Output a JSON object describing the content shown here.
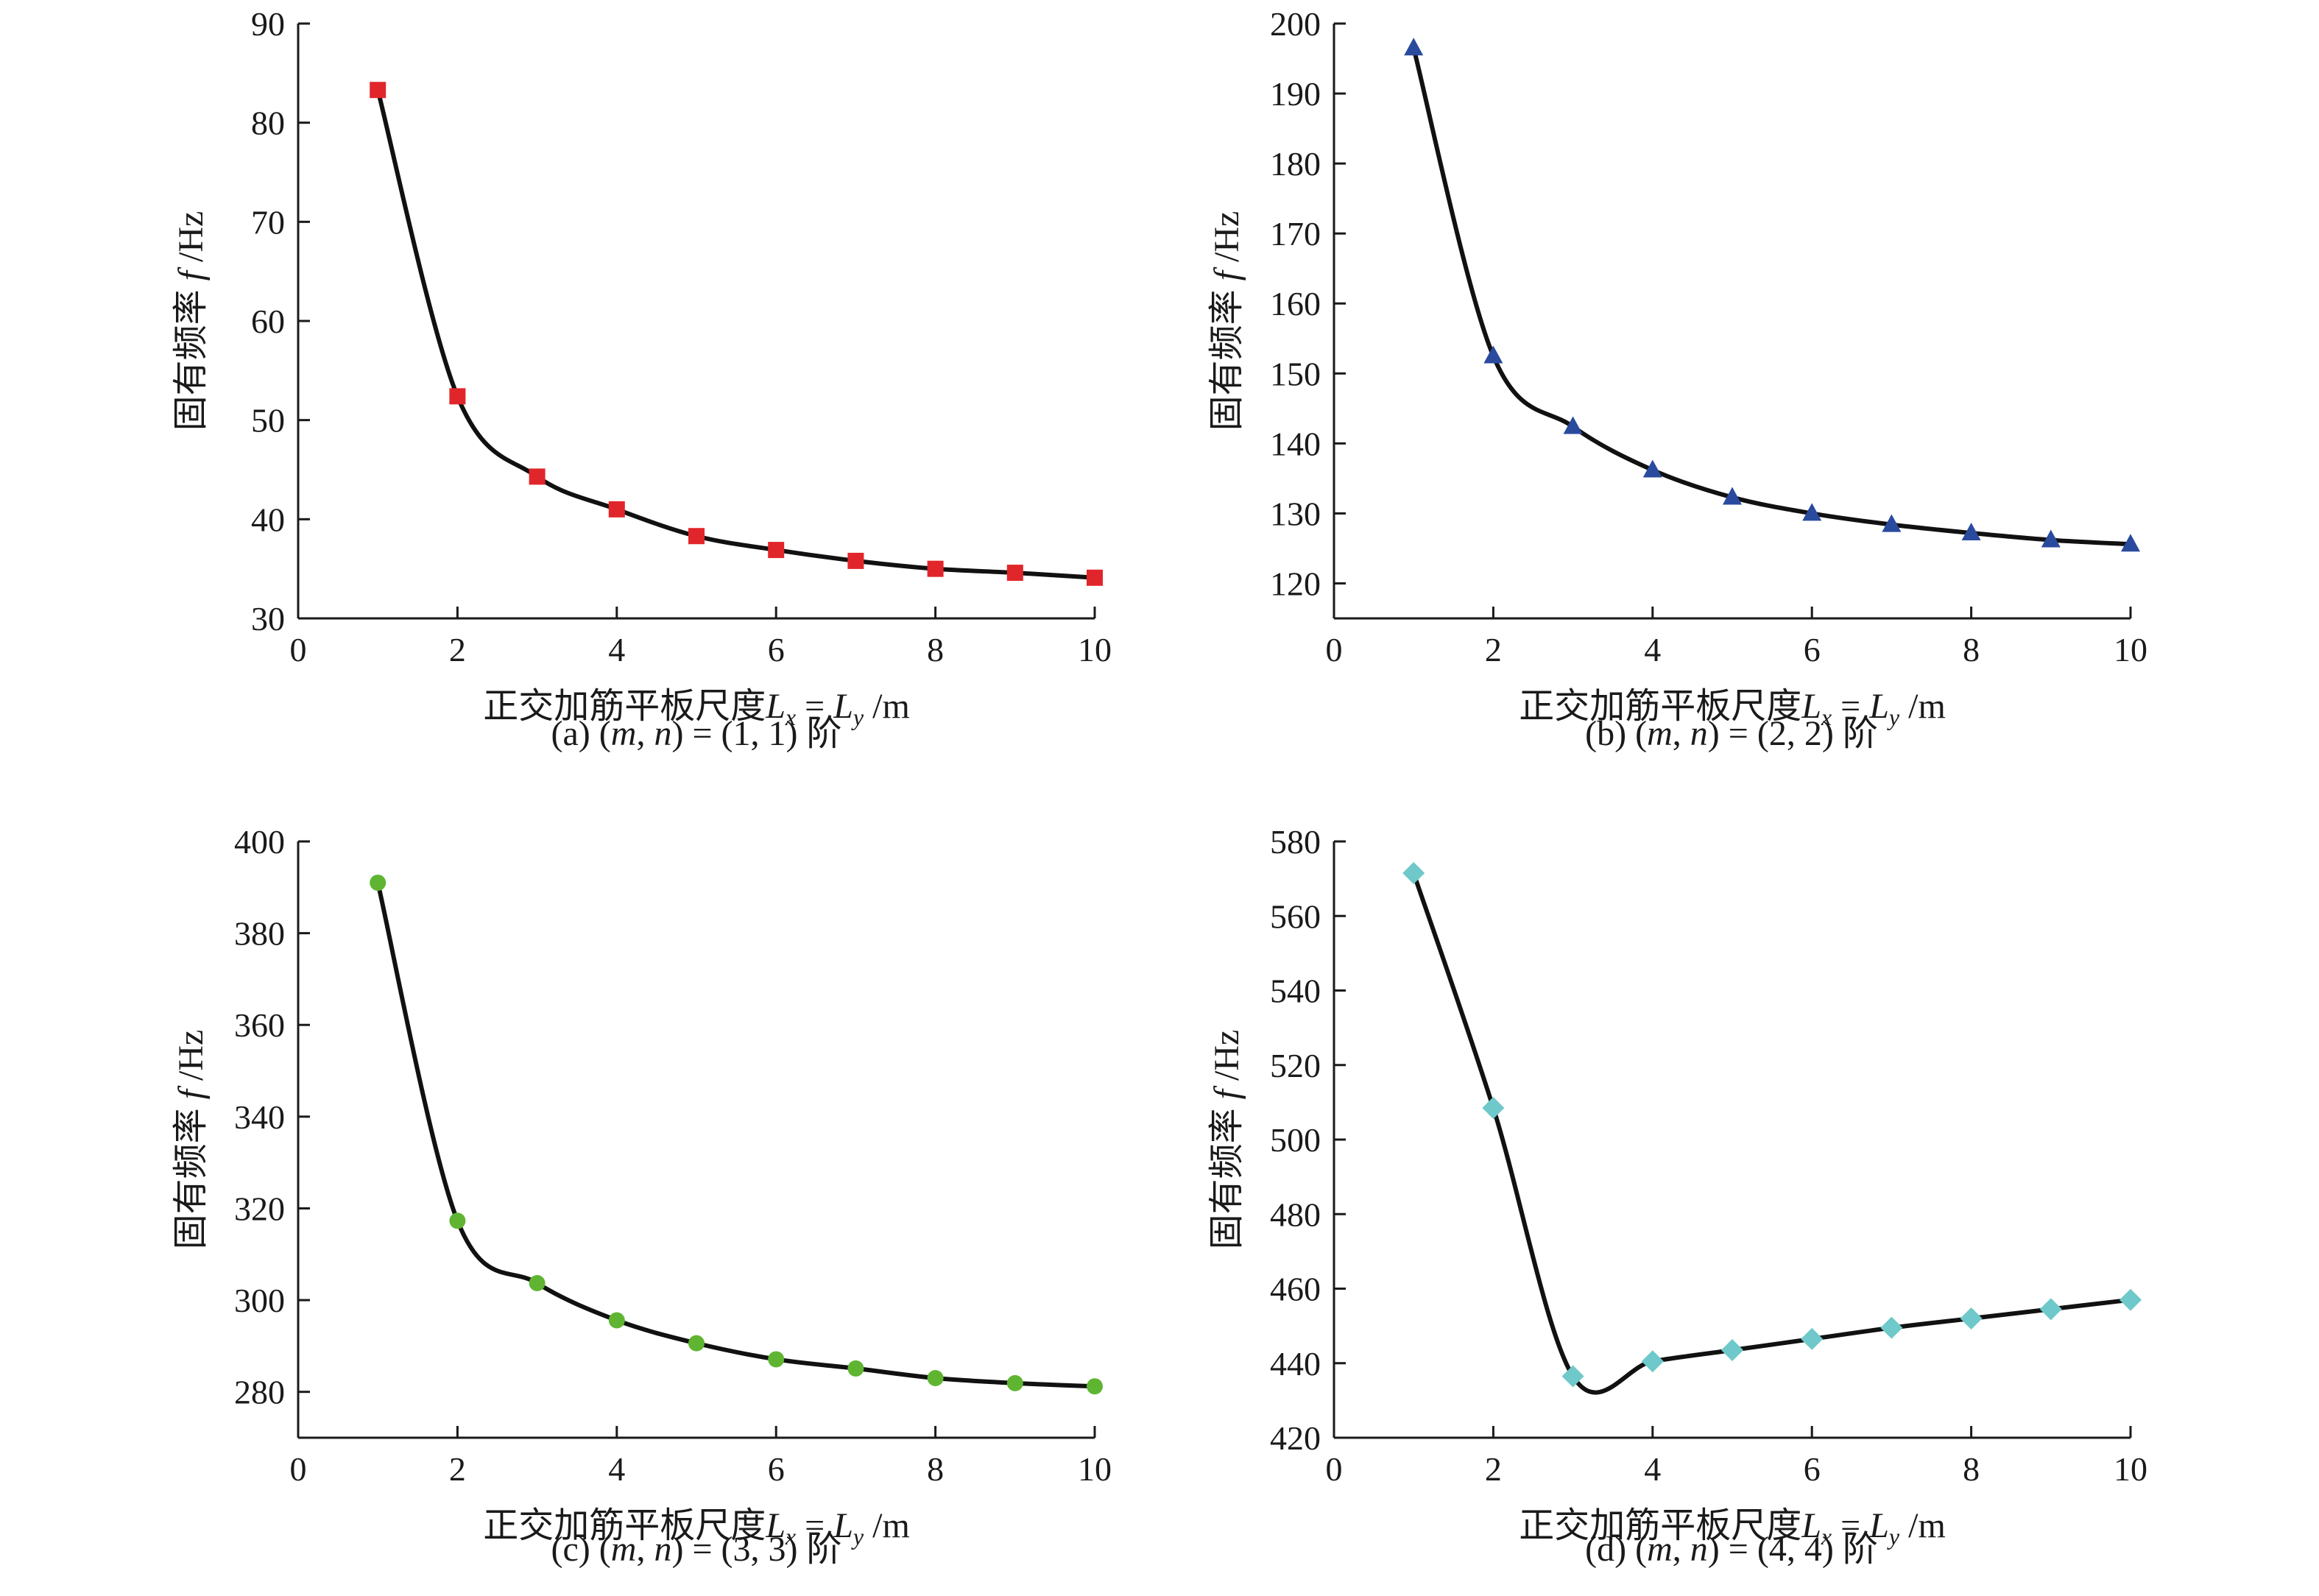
{
  "chart_data": [
    {
      "id": "a",
      "type": "line",
      "caption_label": "(a)",
      "caption_tail": "阶",
      "mode_values": "(1, 1)",
      "ylabel_text": "固有频率",
      "ylabel_symbol": "f",
      "ylabel_unit": "/Hz",
      "xlabel_text": "正交加筋平板尺度",
      "xlabel_unit": "/m",
      "xlim": [
        0,
        10
      ],
      "ylim": [
        30,
        90
      ],
      "xticks": [
        0,
        2,
        4,
        6,
        8,
        10
      ],
      "yticks": [
        30,
        40,
        50,
        60,
        70,
        80,
        90
      ],
      "marker": "square",
      "marker_color": "#e1262b",
      "x": [
        1,
        2,
        3,
        4,
        5,
        6,
        7,
        8,
        9,
        10
      ],
      "values": [
        83.3,
        52.4,
        44.3,
        41.0,
        38.3,
        36.9,
        35.8,
        35.0,
        34.6,
        34.1
      ]
    },
    {
      "id": "b",
      "type": "line",
      "caption_label": "(b)",
      "caption_tail": "阶",
      "mode_values": "(2, 2)",
      "ylabel_text": "固有频率",
      "ylabel_symbol": "f",
      "ylabel_unit": "/Hz",
      "xlabel_text": "正交加筋平板尺度",
      "xlabel_unit": "/m",
      "xlim": [
        0,
        10
      ],
      "ylim": [
        115,
        200
      ],
      "xticks": [
        0,
        2,
        4,
        6,
        8,
        10
      ],
      "yticks": [
        120,
        130,
        140,
        150,
        160,
        170,
        180,
        190,
        200
      ],
      "marker": "triangle",
      "marker_color": "#2a4a9e",
      "x": [
        1,
        2,
        3,
        4,
        5,
        6,
        7,
        8,
        9,
        10
      ],
      "values": [
        196.5,
        152.5,
        142.4,
        136.2,
        132.3,
        130.0,
        128.4,
        127.2,
        126.2,
        125.6
      ]
    },
    {
      "id": "c",
      "type": "line",
      "caption_label": "(c)",
      "caption_tail": "阶",
      "mode_values": "(3, 3)",
      "ylabel_text": "固有频率",
      "ylabel_symbol": "f",
      "ylabel_unit": "/Hz",
      "xlabel_text": "正交加筋平板尺度",
      "xlabel_unit": "/m",
      "xlim": [
        0,
        10
      ],
      "ylim": [
        270,
        400
      ],
      "xticks": [
        0,
        2,
        4,
        6,
        8,
        10
      ],
      "yticks": [
        280,
        300,
        320,
        340,
        360,
        380,
        400
      ],
      "marker": "dot",
      "marker_color": "#5fb531",
      "x": [
        1,
        2,
        3,
        4,
        5,
        6,
        7,
        8,
        9,
        10
      ],
      "values": [
        391.0,
        317.3,
        303.7,
        295.6,
        290.6,
        287.1,
        285.1,
        283.0,
        281.9,
        281.2
      ]
    },
    {
      "id": "d",
      "type": "line",
      "caption_label": "(d)",
      "caption_tail": "阶",
      "mode_values": "(4, 4)",
      "ylabel_text": "固有频率",
      "ylabel_symbol": "f",
      "ylabel_unit": "/Hz",
      "xlabel_text": "正交加筋平板尺度",
      "xlabel_unit": "/m",
      "xlim": [
        0,
        10
      ],
      "ylim": [
        420,
        580
      ],
      "xticks": [
        0,
        2,
        4,
        6,
        8,
        10
      ],
      "yticks": [
        420,
        440,
        460,
        480,
        500,
        520,
        540,
        560,
        580
      ],
      "marker": "diamond",
      "marker_color": "#6fc8c9",
      "x": [
        1,
        2,
        3,
        4,
        5,
        6,
        7,
        8,
        9,
        10
      ],
      "values": [
        571.5,
        508.5,
        436.5,
        440.5,
        443.5,
        446.5,
        449.5,
        452.0,
        454.5,
        457.0
      ]
    }
  ]
}
